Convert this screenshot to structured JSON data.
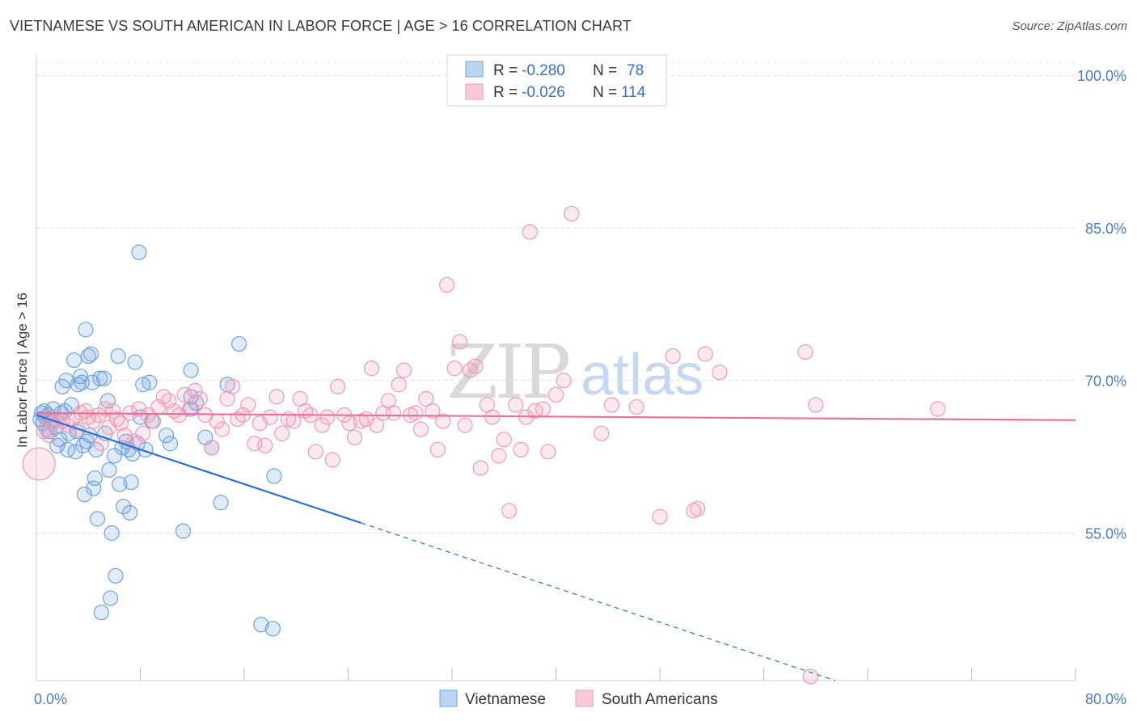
{
  "header": {
    "title": "VIETNAMESE VS SOUTH AMERICAN IN LABOR FORCE | AGE > 16 CORRELATION CHART",
    "source": "Source: ZipAtlas.com"
  },
  "watermark": {
    "zip": "ZIP",
    "atlas": "atlas"
  },
  "legend": {
    "rows": [
      {
        "r_label": "R =",
        "r_value": "-0.280",
        "n_label": "N =",
        "n_value": "78"
      },
      {
        "r_label": "R =",
        "r_value": "-0.026",
        "n_label": "N =",
        "n_value": "114"
      }
    ]
  },
  "bottom_legend": {
    "items": [
      "Vietnamese",
      "South Americans"
    ]
  },
  "chart_data": {
    "type": "scatter",
    "title": "VIETNAMESE VS SOUTH AMERICAN IN LABOR FORCE | AGE > 16 CORRELATION CHART",
    "xlabel": "",
    "ylabel": "In Labor Force | Age > 16",
    "xlim": [
      0,
      80
    ],
    "ylim": [
      40.5,
      102
    ],
    "x_tick_labels": [
      "0.0%",
      "80.0%"
    ],
    "x_tick_values": [
      0,
      80
    ],
    "x_minor_ticks": [
      8,
      16,
      24,
      32,
      40,
      48,
      56,
      64,
      72,
      80
    ],
    "y_ticks": [
      {
        "value": 55,
        "label": "55.0%"
      },
      {
        "value": 70,
        "label": "70.0%"
      },
      {
        "value": 85,
        "label": "85.0%"
      },
      {
        "value": 100,
        "label": "100.0%"
      }
    ],
    "grid": "horizontal dashed",
    "colors": {
      "blue": "#6fa3e0",
      "blue_line": "#2f6fd1",
      "pink": "#f09ab5",
      "pink_line": "#e8709a"
    },
    "series": [
      {
        "name": "Vietnamese",
        "color": "#6fa3e0",
        "trend": {
          "x1": 0,
          "y1": 66.6,
          "x2": 25,
          "y2": 56.0,
          "dash_to_x": 61.5,
          "dash_to_y": 40.5
        },
        "points": [
          [
            0.3,
            66.2
          ],
          [
            0.4,
            66.8
          ],
          [
            0.5,
            65.8
          ],
          [
            0.6,
            67.0
          ],
          [
            0.7,
            66.4
          ],
          [
            0.8,
            65.2
          ],
          [
            0.9,
            66.6
          ],
          [
            1.0,
            65.0
          ],
          [
            1.2,
            66.0
          ],
          [
            1.3,
            67.2
          ],
          [
            1.5,
            65.4
          ],
          [
            1.6,
            63.6
          ],
          [
            1.8,
            64.2
          ],
          [
            1.9,
            66.8
          ],
          [
            2.0,
            69.4
          ],
          [
            2.2,
            67.0
          ],
          [
            2.3,
            70.0
          ],
          [
            2.4,
            63.2
          ],
          [
            2.5,
            64.8
          ],
          [
            2.7,
            67.6
          ],
          [
            2.9,
            72.0
          ],
          [
            3.0,
            63.0
          ],
          [
            3.1,
            65.0
          ],
          [
            3.2,
            69.6
          ],
          [
            3.4,
            70.4
          ],
          [
            3.5,
            69.8
          ],
          [
            3.6,
            63.6
          ],
          [
            3.7,
            58.8
          ],
          [
            3.8,
            75.0
          ],
          [
            3.9,
            64.0
          ],
          [
            4.0,
            72.4
          ],
          [
            4.1,
            64.6
          ],
          [
            4.2,
            72.6
          ],
          [
            4.3,
            69.8
          ],
          [
            4.4,
            59.4
          ],
          [
            4.5,
            60.4
          ],
          [
            4.6,
            63.2
          ],
          [
            4.7,
            56.4
          ],
          [
            4.9,
            70.2
          ],
          [
            5.0,
            47.2
          ],
          [
            5.2,
            70.2
          ],
          [
            5.3,
            64.8
          ],
          [
            5.5,
            68.0
          ],
          [
            5.6,
            61.2
          ],
          [
            5.7,
            48.6
          ],
          [
            5.8,
            55.0
          ],
          [
            6.0,
            62.6
          ],
          [
            6.1,
            50.8
          ],
          [
            6.3,
            72.4
          ],
          [
            6.4,
            59.8
          ],
          [
            6.6,
            63.4
          ],
          [
            6.7,
            57.6
          ],
          [
            6.9,
            64.0
          ],
          [
            7.1,
            63.2
          ],
          [
            7.2,
            57.0
          ],
          [
            7.3,
            60.0
          ],
          [
            7.4,
            62.8
          ],
          [
            7.6,
            71.8
          ],
          [
            7.8,
            63.8
          ],
          [
            7.9,
            82.6
          ],
          [
            8.0,
            66.4
          ],
          [
            8.2,
            69.6
          ],
          [
            8.4,
            63.2
          ],
          [
            8.7,
            69.8
          ],
          [
            8.9,
            66.0
          ],
          [
            10.0,
            64.6
          ],
          [
            10.3,
            63.8
          ],
          [
            11.3,
            55.2
          ],
          [
            11.9,
            67.2
          ],
          [
            11.9,
            68.4
          ],
          [
            11.9,
            71.0
          ],
          [
            12.3,
            67.8
          ],
          [
            13.0,
            64.4
          ],
          [
            13.5,
            63.4
          ],
          [
            14.2,
            58.0
          ],
          [
            14.7,
            69.6
          ],
          [
            15.6,
            73.6
          ],
          [
            18.3,
            60.6
          ],
          [
            17.3,
            46.0
          ],
          [
            18.2,
            45.6
          ]
        ]
      },
      {
        "name": "South Americans",
        "color": "#f09ab5",
        "trend": {
          "x1": 0,
          "y1": 66.8,
          "x2": 80,
          "y2": 66.1
        },
        "points": [
          [
            0.2,
            61.8
          ],
          [
            0.6,
            65.0
          ],
          [
            0.8,
            66.4
          ],
          [
            1.0,
            64.6
          ],
          [
            1.3,
            65.8
          ],
          [
            1.6,
            66.2
          ],
          [
            2.0,
            66.0
          ],
          [
            2.4,
            65.6
          ],
          [
            2.8,
            66.2
          ],
          [
            3.2,
            65.2
          ],
          [
            3.4,
            66.8
          ],
          [
            3.8,
            67.0
          ],
          [
            4.0,
            66.4
          ],
          [
            4.4,
            66.0
          ],
          [
            4.8,
            66.6
          ],
          [
            5.0,
            63.8
          ],
          [
            5.3,
            67.2
          ],
          [
            5.6,
            65.4
          ],
          [
            5.9,
            67.0
          ],
          [
            6.2,
            66.2
          ],
          [
            6.5,
            65.8
          ],
          [
            6.8,
            64.6
          ],
          [
            7.2,
            66.8
          ],
          [
            7.5,
            64.0
          ],
          [
            7.9,
            67.2
          ],
          [
            8.2,
            64.8
          ],
          [
            8.6,
            66.6
          ],
          [
            9.0,
            66.0
          ],
          [
            9.4,
            67.4
          ],
          [
            9.8,
            68.4
          ],
          [
            10.2,
            68.0
          ],
          [
            10.6,
            67.0
          ],
          [
            11.0,
            66.6
          ],
          [
            11.4,
            68.6
          ],
          [
            11.8,
            67.2
          ],
          [
            12.2,
            69.0
          ],
          [
            12.6,
            68.2
          ],
          [
            13.0,
            66.6
          ],
          [
            13.5,
            63.4
          ],
          [
            13.9,
            66.0
          ],
          [
            14.3,
            65.2
          ],
          [
            14.7,
            68.2
          ],
          [
            15.1,
            69.4
          ],
          [
            15.5,
            66.2
          ],
          [
            15.9,
            66.6
          ],
          [
            16.3,
            67.6
          ],
          [
            16.8,
            63.8
          ],
          [
            17.2,
            65.8
          ],
          [
            17.6,
            63.6
          ],
          [
            18.0,
            66.4
          ],
          [
            18.5,
            68.4
          ],
          [
            18.9,
            64.8
          ],
          [
            19.4,
            66.2
          ],
          [
            19.8,
            66.0
          ],
          [
            20.3,
            68.2
          ],
          [
            20.7,
            67.0
          ],
          [
            21.1,
            66.6
          ],
          [
            21.5,
            63.0
          ],
          [
            22.0,
            65.6
          ],
          [
            22.4,
            66.4
          ],
          [
            22.8,
            62.2
          ],
          [
            23.2,
            69.4
          ],
          [
            23.7,
            66.6
          ],
          [
            24.1,
            65.8
          ],
          [
            24.5,
            64.4
          ],
          [
            25.0,
            66.0
          ],
          [
            25.4,
            66.2
          ],
          [
            25.8,
            71.2
          ],
          [
            26.2,
            65.6
          ],
          [
            26.7,
            66.8
          ],
          [
            27.1,
            68.0
          ],
          [
            27.5,
            66.8
          ],
          [
            27.9,
            69.6
          ],
          [
            28.3,
            71.0
          ],
          [
            28.8,
            66.6
          ],
          [
            29.2,
            66.8
          ],
          [
            29.6,
            65.2
          ],
          [
            30.0,
            68.2
          ],
          [
            30.5,
            67.0
          ],
          [
            30.9,
            63.2
          ],
          [
            31.3,
            66.0
          ],
          [
            31.6,
            79.4
          ],
          [
            32.2,
            71.2
          ],
          [
            32.6,
            73.8
          ],
          [
            33.0,
            65.6
          ],
          [
            33.4,
            71.0
          ],
          [
            33.8,
            71.4
          ],
          [
            34.2,
            61.4
          ],
          [
            34.7,
            67.6
          ],
          [
            35.1,
            66.4
          ],
          [
            35.6,
            62.6
          ],
          [
            36.0,
            64.2
          ],
          [
            36.4,
            57.2
          ],
          [
            36.9,
            67.6
          ],
          [
            37.3,
            63.2
          ],
          [
            37.7,
            66.4
          ],
          [
            38.0,
            84.6
          ],
          [
            38.4,
            67.0
          ],
          [
            39.0,
            67.2
          ],
          [
            39.4,
            63.0
          ],
          [
            40.0,
            68.6
          ],
          [
            40.6,
            70.0
          ],
          [
            41.2,
            86.4
          ],
          [
            43.5,
            64.8
          ],
          [
            44.3,
            67.6
          ],
          [
            46.2,
            67.4
          ],
          [
            48.0,
            56.6
          ],
          [
            49.0,
            72.4
          ],
          [
            50.6,
            57.2
          ],
          [
            50.9,
            57.4
          ],
          [
            51.5,
            72.6
          ],
          [
            52.6,
            70.8
          ],
          [
            59.2,
            72.8
          ],
          [
            60.0,
            67.6
          ],
          [
            69.4,
            67.2
          ],
          [
            59.6,
            40.9
          ]
        ]
      }
    ]
  }
}
